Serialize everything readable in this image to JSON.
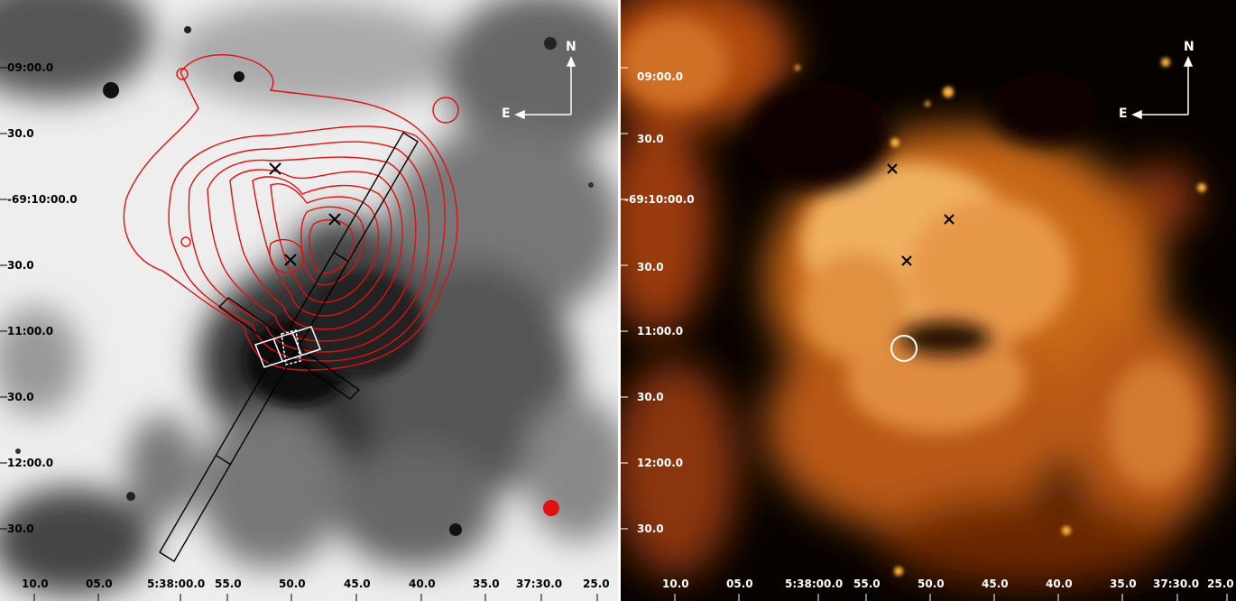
{
  "left_panel": {
    "dec_ticks": [
      "09:00.0",
      "30.0",
      "-69:10:00.0",
      "30.0",
      "11:00.0",
      "30.0",
      "12:00.0",
      "30.0"
    ],
    "ra_ticks": [
      "10.0",
      "05.0",
      "5:38:00.0",
      "55.0",
      "50.0",
      "45.0",
      "40.0",
      "35.0",
      "37:30.0",
      "25.0"
    ],
    "compass": {
      "north": "N",
      "east": "E"
    },
    "colors": {
      "contour": "#e01010",
      "slit": "#000000",
      "marker": "#000000"
    }
  },
  "right_panel": {
    "dec_ticks": [
      "09:00.0",
      "30.0",
      "-69:10:00.0",
      "30.0",
      "11:00.0",
      "30.0",
      "12:00.0",
      "30.0"
    ],
    "ra_ticks": [
      "10.0",
      "05.0",
      "5:38:00.0",
      "55.0",
      "50.0",
      "45.0",
      "40.0",
      "35.0",
      "37:30.0",
      "25.0"
    ],
    "compass": {
      "north": "N",
      "east": "E"
    },
    "colors": {
      "emission": "#f0a050",
      "marker": "#000000",
      "circle": "#ffffff"
    }
  }
}
